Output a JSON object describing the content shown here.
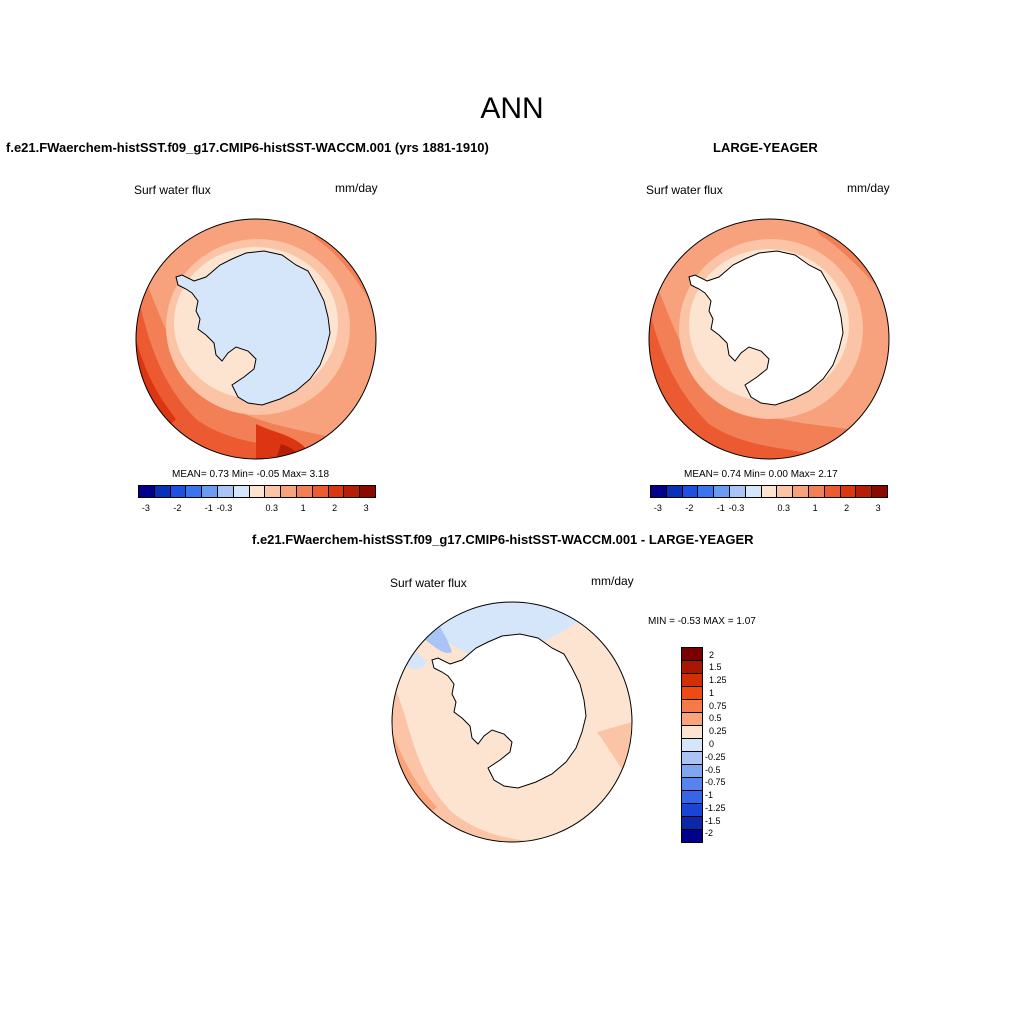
{
  "title": "ANN",
  "panels": [
    {
      "heading": "f.e21.FWaerchem-histSST.f09_g17.CMIP6-histSST-WACCM.001 (yrs 1881-1910)",
      "left_label": "Surf water flux",
      "right_label": "mm/day",
      "stats": "MEAN=   0.73  Min=  -0.05  Max=   3.18"
    },
    {
      "heading": "LARGE-YEAGER",
      "left_label": "Surf water flux",
      "right_label": "mm/day",
      "stats": "MEAN=   0.74  Min=   0.00  Max=   2.17"
    },
    {
      "heading": "f.e21.FWaerchem-histSST.f09_g17.CMIP6-histSST-WACCM.001 - LARGE-YEAGER",
      "left_label": "Surf water flux",
      "right_label": "mm/day",
      "stats": "MIN =  -0.53 MAX =   1.07"
    }
  ],
  "abs_colorbar": {
    "colors": [
      "#00008b",
      "#0a2fb8",
      "#1e4fe0",
      "#3b73f0",
      "#6e9bf2",
      "#a9c4f5",
      "#d6e6fa",
      "#fde4d0",
      "#fbc4a6",
      "#f7a27d",
      "#f27f56",
      "#ec5a32",
      "#dc3512",
      "#b51f08",
      "#8b0a00"
    ],
    "ticks": [
      "-3",
      "-2",
      "-1",
      "-0.3",
      "0.3",
      "1",
      "2",
      "3"
    ]
  },
  "diff_colorbar": {
    "colors": [
      "#7a0000",
      "#a81500",
      "#d23000",
      "#ef4a12",
      "#f67a48",
      "#f9a47a",
      "#fde4d0",
      "#d6e6fa",
      "#a9c4f5",
      "#7ea6f2",
      "#5783ef",
      "#3565e8",
      "#1a44d6",
      "#0b28a8",
      "#00008b"
    ],
    "ticks": [
      "2",
      "1.5",
      "1.25",
      "1",
      "0.75",
      "0.5",
      "0.25",
      "0",
      "-0.25",
      "-0.5",
      "-0.75",
      "-1",
      "-1.25",
      "-1.5",
      "-2"
    ]
  }
}
